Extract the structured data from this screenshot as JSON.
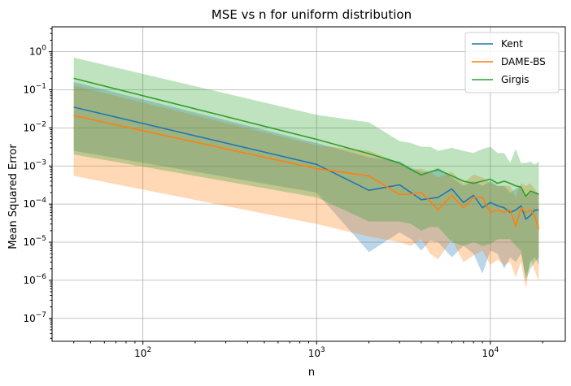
{
  "chart_data": {
    "type": "line",
    "title": "MSE vs n for uniform distribution",
    "xlabel": "n",
    "ylabel": "Mean Squared Error",
    "xscale": "log",
    "yscale": "log",
    "xlim": [
      30,
      27000
    ],
    "ylim": [
      2.5e-08,
      4.5
    ],
    "grid": true,
    "legend_position": "top-right",
    "x_ticks": [
      {
        "value": 100,
        "base": "10",
        "exp": "2"
      },
      {
        "value": 1000,
        "base": "10",
        "exp": "3"
      },
      {
        "value": 10000,
        "base": "10",
        "exp": "4"
      }
    ],
    "y_ticks": [
      {
        "value": 1e-07,
        "base": "10",
        "exp": "−7"
      },
      {
        "value": 1e-06,
        "base": "10",
        "exp": "−6"
      },
      {
        "value": 1e-05,
        "base": "10",
        "exp": "−5"
      },
      {
        "value": 0.0001,
        "base": "10",
        "exp": "−4"
      },
      {
        "value": 0.001,
        "base": "10",
        "exp": "−3"
      },
      {
        "value": 0.01,
        "base": "10",
        "exp": "−2"
      },
      {
        "value": 0.1,
        "base": "10",
        "exp": "−1"
      },
      {
        "value": 1,
        "base": "10",
        "exp": "0"
      }
    ],
    "x": [
      40,
      1000,
      2000,
      3000,
      3500,
      4000,
      4500,
      5000,
      6000,
      7000,
      8000,
      9000,
      10000,
      11000,
      12000,
      13000,
      14000,
      15000,
      16000,
      17000,
      18000,
      19000
    ],
    "series": [
      {
        "name": "Kent",
        "color": "#1f77b4",
        "band_color": "#1f77b4",
        "band_opacity": 0.3,
        "values": [
          0.035,
          0.0011,
          0.00023,
          0.00032,
          0.0002,
          0.00013,
          0.00014,
          0.00015,
          0.00025,
          0.00011,
          0.00017,
          8e-05,
          0.00011,
          9e-05,
          8e-05,
          6e-05,
          7e-05,
          9e-05,
          4e-05,
          5e-05,
          7e-05,
          7e-05
        ],
        "upper": [
          0.16,
          0.004,
          0.0017,
          0.0013,
          0.0009,
          0.0007,
          0.0007,
          0.0009,
          0.0005,
          0.0003,
          0.0004,
          0.0003,
          0.0004,
          0.0003,
          0.0003,
          0.0002,
          0.00025,
          0.0003,
          0.00015,
          0.0002,
          0.0002,
          0.0002
        ],
        "lower": [
          0.0025,
          0.0002,
          5.5e-06,
          1.8e-05,
          1.2e-05,
          6e-06,
          1.1e-05,
          1e-05,
          4e-06,
          8e-06,
          5e-06,
          1.5e-06,
          6e-06,
          5e-06,
          2e-06,
          4e-06,
          3e-06,
          5e-06,
          1.2e-06,
          3e-06,
          4e-06,
          2.5e-06
        ]
      },
      {
        "name": "DAME-BS",
        "color": "#ff7f0e",
        "band_color": "#ff7f0e",
        "band_opacity": 0.3,
        "values": [
          0.021,
          0.00085,
          0.00055,
          0.00018,
          0.00018,
          0.0002,
          0.00012,
          7e-05,
          0.00017,
          8e-05,
          0.00015,
          0.00015,
          6e-05,
          7e-05,
          6e-05,
          7e-05,
          2.6e-05,
          8e-05,
          6e-05,
          7e-05,
          5e-05,
          2.2e-05
        ],
        "upper": [
          0.13,
          0.0035,
          0.0025,
          0.0012,
          0.0008,
          0.00085,
          0.0007,
          0.0005,
          0.0007,
          0.00035,
          0.0006,
          0.0005,
          0.00035,
          0.0003,
          0.0003,
          0.0003,
          0.00015,
          0.00035,
          0.0003,
          0.00035,
          0.00025,
          0.00017
        ],
        "lower": [
          0.00055,
          3e-05,
          1.4e-05,
          1e-05,
          8e-06,
          1.2e-05,
          5e-06,
          3.5e-06,
          1.2e-05,
          3e-06,
          4.5e-06,
          6e-06,
          2.5e-06,
          3.5e-06,
          2.5e-06,
          3e-06,
          1.2e-06,
          3e-06,
          6e-07,
          3.5e-06,
          1.8e-06,
          9e-07
        ]
      },
      {
        "name": "Girgis",
        "color": "#2ca02c",
        "band_color": "#2ca02c",
        "band_opacity": 0.3,
        "values": [
          0.2,
          0.005,
          0.0021,
          0.0012,
          0.0008,
          0.00058,
          0.0007,
          0.0008,
          0.00055,
          0.0004,
          0.00035,
          0.0004,
          0.00045,
          0.00035,
          0.0004,
          0.00035,
          0.0003,
          0.00028,
          0.00016,
          0.00022,
          0.0002,
          0.00018
        ],
        "upper": [
          0.7,
          0.022,
          0.014,
          0.0045,
          0.004,
          0.0032,
          0.0032,
          0.0025,
          0.003,
          0.0025,
          0.0022,
          0.0028,
          0.0032,
          0.0022,
          0.0022,
          0.0012,
          0.0028,
          0.0012,
          0.0012,
          0.0013,
          0.0011,
          0.0013
        ],
        "lower": [
          0.002,
          0.00015,
          3.5e-05,
          3.5e-05,
          3e-05,
          2e-05,
          2.5e-05,
          2.5e-05,
          1e-05,
          8e-06,
          1e-05,
          8e-06,
          9e-06,
          1.2e-05,
          1.2e-05,
          1.2e-05,
          8e-06,
          6e-06,
          1e-06,
          2e-06,
          3e-06,
          4e-06
        ]
      }
    ]
  }
}
